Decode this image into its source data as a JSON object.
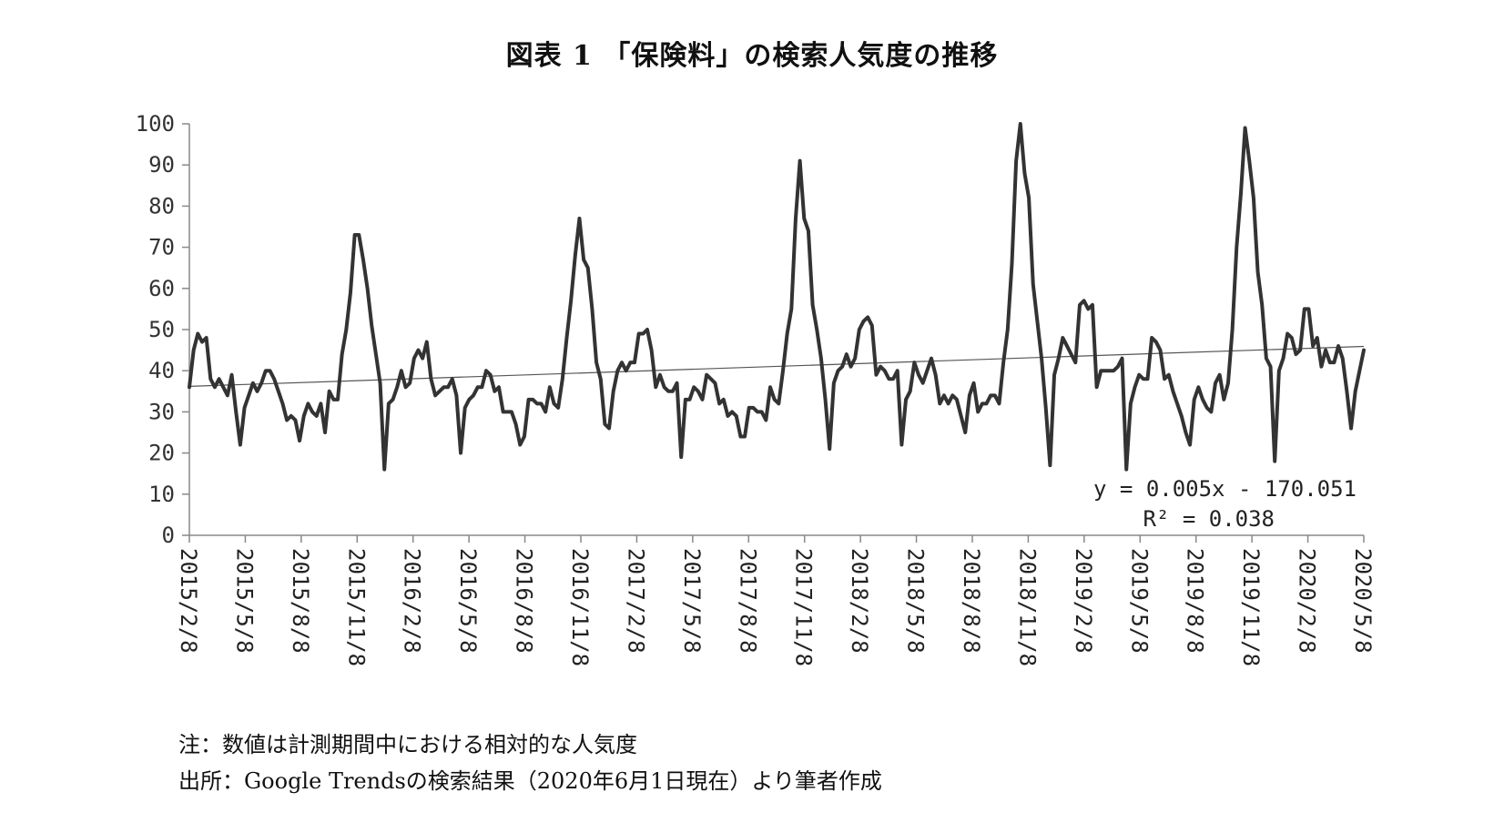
{
  "chart_data": {
    "type": "line",
    "title": "図表 1 「保険料」の検索人気度の推移",
    "xlabel": "",
    "ylabel": "",
    "ylim": [
      0,
      100
    ],
    "yticks": [
      "0",
      "10",
      "20",
      "30",
      "40",
      "50",
      "60",
      "70",
      "80",
      "90",
      "100"
    ],
    "xtick_labels": [
      "2015/2/8",
      "2015/5/8",
      "2015/8/8",
      "2015/11/8",
      "2016/2/8",
      "2016/5/8",
      "2016/8/8",
      "2016/11/8",
      "2017/2/8",
      "2017/5/8",
      "2017/8/8",
      "2017/11/8",
      "2018/2/8",
      "2018/5/8",
      "2018/8/8",
      "2018/11/8",
      "2019/2/8",
      "2019/5/8",
      "2019/8/8",
      "2019/11/8",
      "2020/2/8",
      "2020/5/8"
    ],
    "grid": false,
    "legend": "none",
    "series": [
      {
        "color": "#333333",
        "values": [
          36,
          45,
          49,
          47,
          48,
          38,
          36,
          38,
          36,
          34,
          39,
          30,
          22,
          31,
          34,
          37,
          35,
          37,
          40,
          40,
          38,
          35,
          32,
          28,
          29,
          28,
          23,
          29,
          32,
          30,
          29,
          32,
          25,
          35,
          33,
          33,
          44,
          50,
          59,
          73,
          73,
          67,
          60,
          51,
          44,
          37,
          16,
          32,
          33,
          36,
          40,
          36,
          37,
          43,
          45,
          43,
          47,
          38,
          34,
          35,
          36,
          36,
          38,
          34,
          20,
          31,
          33,
          34,
          36,
          36,
          40,
          39,
          35,
          36,
          30,
          30,
          30,
          27,
          22,
          24,
          33,
          33,
          32,
          32,
          30,
          36,
          32,
          31,
          38,
          48,
          57,
          68,
          77,
          67,
          65,
          55,
          42,
          38,
          27,
          26,
          35,
          40,
          42,
          40,
          42,
          42,
          49,
          49,
          50,
          45,
          36,
          39,
          36,
          35,
          35,
          37,
          19,
          33,
          33,
          36,
          35,
          33,
          39,
          38,
          37,
          32,
          33,
          29,
          30,
          29,
          24,
          24,
          31,
          31,
          30,
          30,
          28,
          36,
          33,
          32,
          40,
          49,
          55,
          77,
          91,
          77,
          74,
          56,
          50,
          43,
          33,
          21,
          37,
          40,
          41,
          44,
          41,
          43,
          50,
          52,
          53,
          51,
          39,
          41,
          40,
          38,
          38,
          40,
          22,
          33,
          35,
          42,
          39,
          37,
          40,
          43,
          39,
          32,
          34,
          32,
          34,
          33,
          29,
          25,
          34,
          37,
          30,
          32,
          32,
          34,
          34,
          32,
          42,
          50,
          66,
          91,
          100,
          88,
          82,
          61,
          52,
          43,
          31,
          17,
          39,
          43,
          48,
          46,
          44,
          42,
          56,
          57,
          55,
          56,
          36,
          40,
          40,
          40,
          40,
          41,
          43,
          16,
          32,
          36,
          39,
          38,
          38,
          48,
          47,
          45,
          38,
          39,
          35,
          32,
          29,
          25,
          22,
          33,
          36,
          33,
          31,
          30,
          37,
          39,
          33,
          37,
          50,
          70,
          83,
          99,
          91,
          82,
          64,
          56,
          43,
          41,
          18,
          40,
          43,
          49,
          48,
          44,
          45,
          55,
          55,
          46,
          48,
          41,
          45,
          42,
          42,
          46,
          43,
          35,
          26,
          35,
          40,
          45
        ]
      }
    ],
    "trendline": {
      "equation": "y = 0.005x - 170.051",
      "r2_label": "R² = 0.038",
      "start_value": 36.2,
      "end_value": 45.9
    }
  },
  "notes": {
    "note1": "注：数値は計測期間中における相対的な人気度",
    "note2": "出所：Google Trendsの検索結果（2020年6月1日現在）より筆者作成"
  }
}
